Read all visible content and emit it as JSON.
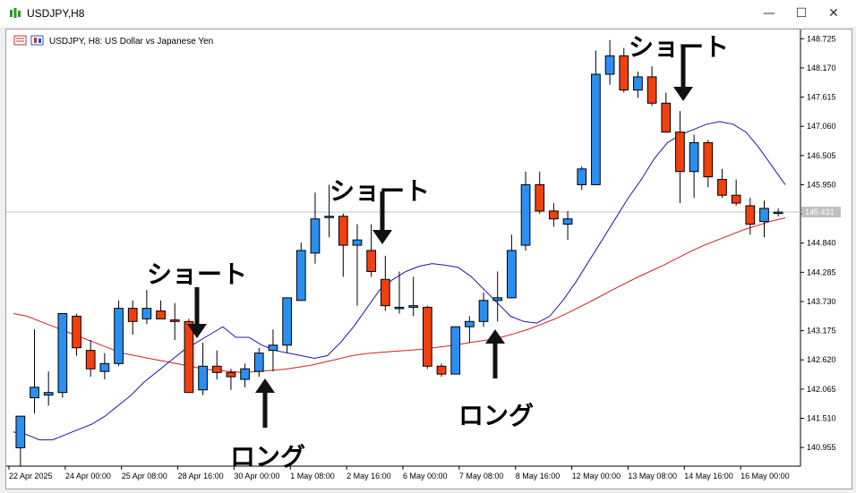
{
  "window": {
    "title": "USDJPY,H8",
    "minimize_glyph": "—",
    "maximize_glyph": "☐",
    "close_glyph": "✕"
  },
  "chart_header": {
    "text": "USDJPY, H8:  US Dollar vs Japanese Yen",
    "icons": [
      "indicator-list-icon",
      "chart-symbol-icon"
    ]
  },
  "colors": {
    "bull": "#2b8ff0",
    "bear": "#f0400f",
    "ma_fast": "#1a1aa0",
    "ma_slow": "#d02020",
    "current_price_line": "#c0c0c0"
  },
  "annotations": [
    {
      "label": "ショート",
      "direction": "down",
      "type": "short"
    },
    {
      "label": "ショート",
      "direction": "down",
      "type": "short"
    },
    {
      "label": "ショート",
      "direction": "down",
      "type": "short"
    },
    {
      "label": "ロング",
      "direction": "up",
      "type": "long"
    },
    {
      "label": "ロング",
      "direction": "up",
      "type": "long"
    }
  ],
  "chart_data": {
    "type": "candlestick",
    "symbol": "USDJPY",
    "timeframe": "H8",
    "ylim": [
      140.6,
      148.9
    ],
    "y_ticks": [
      "148.725",
      "148.170",
      "147.615",
      "147.060",
      "146.505",
      "145.950",
      "145.395",
      "144.840",
      "144.285",
      "143.730",
      "143.175",
      "142.620",
      "142.065",
      "141.510",
      "140.955"
    ],
    "current_price": "145.431",
    "x_ticks": [
      "22 Apr 2025",
      "24 Apr 00:00",
      "25 Apr 08:00",
      "28 Apr 16:00",
      "30 Apr 00:00",
      "1 May 08:00",
      "2 May 16:00",
      "6 May 00:00",
      "7 May 08:00",
      "8 May 16:00",
      "12 May 00:00",
      "13 May 08:00",
      "14 May 16:00",
      "16 May 00:00"
    ],
    "candles": [
      {
        "o": 140.95,
        "h": 141.55,
        "l": 140.6,
        "c": 141.55
      },
      {
        "o": 141.9,
        "h": 143.2,
        "l": 141.6,
        "c": 142.1
      },
      {
        "o": 141.95,
        "h": 142.4,
        "l": 141.75,
        "c": 142.0
      },
      {
        "o": 142.0,
        "h": 143.5,
        "l": 141.9,
        "c": 143.5
      },
      {
        "o": 143.45,
        "h": 143.5,
        "l": 142.7,
        "c": 142.85
      },
      {
        "o": 142.8,
        "h": 143.0,
        "l": 142.3,
        "c": 142.45
      },
      {
        "o": 142.4,
        "h": 142.75,
        "l": 142.25,
        "c": 142.55
      },
      {
        "o": 142.55,
        "h": 143.75,
        "l": 142.5,
        "c": 143.6
      },
      {
        "o": 143.6,
        "h": 143.75,
        "l": 143.1,
        "c": 143.35
      },
      {
        "o": 143.4,
        "h": 143.95,
        "l": 143.3,
        "c": 143.6
      },
      {
        "o": 143.55,
        "h": 143.75,
        "l": 143.4,
        "c": 143.4
      },
      {
        "o": 143.38,
        "h": 143.7,
        "l": 143.0,
        "c": 143.35
      },
      {
        "o": 143.35,
        "h": 143.4,
        "l": 142.0,
        "c": 142.0
      },
      {
        "o": 142.05,
        "h": 142.95,
        "l": 141.95,
        "c": 142.5
      },
      {
        "o": 142.5,
        "h": 142.8,
        "l": 142.25,
        "c": 142.38
      },
      {
        "o": 142.38,
        "h": 142.45,
        "l": 142.05,
        "c": 142.3
      },
      {
        "o": 142.25,
        "h": 142.55,
        "l": 142.1,
        "c": 142.45
      },
      {
        "o": 142.4,
        "h": 142.85,
        "l": 142.3,
        "c": 142.75
      },
      {
        "o": 142.8,
        "h": 143.2,
        "l": 142.4,
        "c": 142.9
      },
      {
        "o": 142.9,
        "h": 143.8,
        "l": 142.75,
        "c": 143.8
      },
      {
        "o": 143.75,
        "h": 144.85,
        "l": 143.75,
        "c": 144.7
      },
      {
        "o": 144.65,
        "h": 145.8,
        "l": 144.45,
        "c": 145.3
      },
      {
        "o": 145.35,
        "h": 145.95,
        "l": 144.95,
        "c": 145.35
      },
      {
        "o": 145.35,
        "h": 145.4,
        "l": 144.2,
        "c": 144.8
      },
      {
        "o": 144.8,
        "h": 145.2,
        "l": 143.65,
        "c": 144.9
      },
      {
        "o": 144.7,
        "h": 145.2,
        "l": 144.2,
        "c": 144.3
      },
      {
        "o": 144.15,
        "h": 144.6,
        "l": 143.55,
        "c": 143.65
      },
      {
        "o": 143.6,
        "h": 144.3,
        "l": 143.5,
        "c": 143.62
      },
      {
        "o": 143.62,
        "h": 144.2,
        "l": 143.45,
        "c": 143.65
      },
      {
        "o": 143.62,
        "h": 143.65,
        "l": 142.45,
        "c": 142.5
      },
      {
        "o": 142.5,
        "h": 142.55,
        "l": 142.3,
        "c": 142.35
      },
      {
        "o": 142.35,
        "h": 143.25,
        "l": 142.35,
        "c": 143.25
      },
      {
        "o": 143.25,
        "h": 143.45,
        "l": 142.95,
        "c": 143.35
      },
      {
        "o": 143.35,
        "h": 143.9,
        "l": 143.25,
        "c": 143.75
      },
      {
        "o": 143.75,
        "h": 144.3,
        "l": 143.35,
        "c": 143.8
      },
      {
        "o": 143.8,
        "h": 145.0,
        "l": 143.8,
        "c": 144.7
      },
      {
        "o": 144.8,
        "h": 146.2,
        "l": 144.7,
        "c": 145.95
      },
      {
        "o": 145.95,
        "h": 146.2,
        "l": 145.4,
        "c": 145.45
      },
      {
        "o": 145.45,
        "h": 145.6,
        "l": 145.15,
        "c": 145.3
      },
      {
        "o": 145.2,
        "h": 145.45,
        "l": 144.9,
        "c": 145.3
      },
      {
        "o": 145.95,
        "h": 146.3,
        "l": 145.85,
        "c": 146.25
      },
      {
        "o": 145.95,
        "h": 148.5,
        "l": 145.95,
        "c": 148.05
      },
      {
        "o": 148.05,
        "h": 148.7,
        "l": 147.85,
        "c": 148.4
      },
      {
        "o": 148.4,
        "h": 148.55,
        "l": 147.7,
        "c": 147.75
      },
      {
        "o": 147.75,
        "h": 148.1,
        "l": 147.6,
        "c": 148.0
      },
      {
        "o": 148.0,
        "h": 148.2,
        "l": 147.45,
        "c": 147.5
      },
      {
        "o": 147.5,
        "h": 147.7,
        "l": 146.95,
        "c": 146.95
      },
      {
        "o": 146.95,
        "h": 147.35,
        "l": 145.6,
        "c": 146.2
      },
      {
        "o": 146.2,
        "h": 146.9,
        "l": 145.7,
        "c": 146.75
      },
      {
        "o": 146.75,
        "h": 146.8,
        "l": 145.9,
        "c": 146.1
      },
      {
        "o": 146.05,
        "h": 146.25,
        "l": 145.7,
        "c": 145.75
      },
      {
        "o": 145.75,
        "h": 146.05,
        "l": 145.55,
        "c": 145.6
      },
      {
        "o": 145.55,
        "h": 145.7,
        "l": 145.0,
        "c": 145.2
      },
      {
        "o": 145.25,
        "h": 145.65,
        "l": 144.95,
        "c": 145.5
      },
      {
        "o": 145.43,
        "h": 145.5,
        "l": 145.35,
        "c": 145.43
      }
    ],
    "ma_fast": [
      141.25,
      141.2,
      141.1,
      141.1,
      141.2,
      141.3,
      141.4,
      141.55,
      141.75,
      141.95,
      142.2,
      142.4,
      142.6,
      142.8,
      142.95,
      143.1,
      143.25,
      143.05,
      143.05,
      142.9,
      142.8,
      142.75,
      142.7,
      142.65,
      142.7,
      142.95,
      143.25,
      143.6,
      143.95,
      144.15,
      144.3,
      144.4,
      144.45,
      144.42,
      144.38,
      144.2,
      143.95,
      143.7,
      143.45,
      143.35,
      143.32,
      143.45,
      143.75,
      144.1,
      144.5,
      144.9,
      145.3,
      145.7,
      146.05,
      146.45,
      146.75,
      146.9,
      147.0,
      147.1,
      147.15,
      147.1,
      146.95,
      146.65,
      146.3,
      145.95
    ],
    "ma_slow": [
      143.5,
      143.45,
      143.35,
      143.25,
      143.15,
      143.05,
      142.95,
      142.85,
      142.75,
      142.7,
      142.65,
      142.6,
      142.55,
      142.5,
      142.45,
      142.42,
      142.4,
      142.38,
      142.4,
      142.42,
      142.44,
      142.48,
      142.52,
      142.58,
      142.64,
      142.7,
      142.74,
      142.76,
      142.78,
      142.8,
      142.82,
      142.85,
      142.88,
      142.92,
      142.96,
      143.0,
      143.05,
      143.12,
      143.2,
      143.3,
      143.4,
      143.52,
      143.65,
      143.78,
      143.92,
      144.05,
      144.18,
      144.3,
      144.42,
      144.55,
      144.68,
      144.8,
      144.9,
      145.0,
      145.1,
      145.18,
      145.26,
      145.32
    ]
  }
}
